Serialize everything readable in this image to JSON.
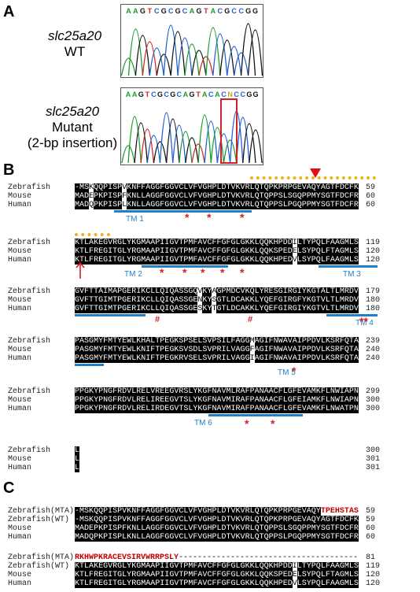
{
  "panels": {
    "a": "A",
    "b": "B",
    "c": "C"
  },
  "panelA": {
    "wt": {
      "gene": "slc25a20",
      "label": "WT",
      "bases": [
        "A",
        "A",
        "G",
        "T",
        "C",
        "G",
        "C",
        "G",
        "C",
        "A",
        "G",
        "T",
        "A",
        "C",
        "G",
        "C",
        "C",
        "G",
        "G"
      ]
    },
    "mutant": {
      "gene": "slc25a20",
      "label": "Mutant",
      "note": "(2-bp insertion)",
      "bases": [
        "A",
        "A",
        "G",
        "T",
        "C",
        "G",
        "C",
        "G",
        "C",
        "A",
        "G",
        "T",
        "A",
        "C",
        "A",
        "C",
        "N",
        "C",
        "C",
        "G",
        "G"
      ]
    }
  },
  "panelB": {
    "blocks": [
      {
        "rows": [
          {
            "species": "Zebrafish",
            "seq": "-MSKQQPISPVKNFFAGGFGGVCLVFVGHPLDTVKVRLQTQPKPRPGEVAQYAGTFDCFK",
            "num": "59"
          },
          {
            "species": "Mouse",
            "seq": "MADEPKPISPFKNLLAGGFGGVCLVFVGHPLDTVKVRLQTQPPSLSGQPPMYSGTFDCFR",
            "num": "60"
          },
          {
            "species": "Human",
            "seq": "MADQPKPISPLKNLLAGGFGGVCLVFVGHPLDTVKVRLQTQPPSLPGQPPMYSGTFDCFR",
            "num": "60"
          }
        ],
        "tm": [
          {
            "label": "TM 1"
          }
        ]
      },
      {
        "rows": [
          {
            "species": "Zebrafish",
            "seq": "KTLAKEGVRGLYKGMAAPIIGVTPMFAVCFFGFGLGKKLQQKHPDDILTYPQLFAAGMLS",
            "num": "119"
          },
          {
            "species": "Mouse",
            "seq": "KTLFREGITGLYRGMAAPIIGVTPMFAVCFFGFGLGKKLQQKSPEDELSYPQLFTAGMLS",
            "num": "120"
          },
          {
            "species": "Human",
            "seq": "KTLFREGITGLYRGMAAPIIGVTPMFAVCFFGFGLGKKLQQKHPEDVLSYPQLFAAGMLS",
            "num": "120"
          }
        ],
        "tm": [
          {
            "label": "TM 2"
          },
          {
            "label": "TM 3"
          }
        ]
      },
      {
        "rows": [
          {
            "species": "Zebrafish",
            "seq": "GVFTTAIMAPGERIKCLLQIQASSGQVKYAGPMDCVKQLYRESGIRGIYKGTALTLMRDV",
            "num": "179"
          },
          {
            "species": "Mouse",
            "seq": "GVFTTGIMTPGERIKCLLQIQASSGENKYSGTLDCAKKLYQEFGIRGFYKGTVLTLMRDV",
            "num": "180"
          },
          {
            "species": "Human",
            "seq": "GVFTTGIMTPGERIKCLLQIQASSGESKYTGTLDCAKKLYQEFGIRGIYKGTVLTLMRDV",
            "num": "180"
          }
        ],
        "tm": [
          {
            "label": "TM 4"
          }
        ]
      },
      {
        "rows": [
          {
            "species": "Zebrafish",
            "seq": "PASGMYFMTYEWLKHALTPEGKSPSELSVPSILFAGGMAGIFNWAVAIPPDVLKSRFQTA",
            "num": "239"
          },
          {
            "species": "Mouse",
            "seq": "PASGMYFMTYEWLKNIFTPEGKSVSDLSVPRILVAGGFAGIFNWAVAIPPDVLKSRFQTA",
            "num": "240"
          },
          {
            "species": "Human",
            "seq": "PASGMYFMTYEWLKNIFTPEGKRVSELSVPRILVAGGIAGIFNWAVAIPPDVLKSRFQTA",
            "num": "240"
          }
        ],
        "tm": [
          {
            "label": "TM 5"
          }
        ]
      },
      {
        "rows": [
          {
            "species": "Zebrafish",
            "seq": "PPGKYPNGFRDVLRELVREEGVRSLYKGFNAVMLRAFPANAACFLGFEVAMKFLNWIAPN",
            "num": "299"
          },
          {
            "species": "Mouse",
            "seq": "PPGKYPNGFRDVLRELIREEGVTSLYKGFNAVMIRAFPANAACFLGFEIAMKFLNWIAPN",
            "num": "300"
          },
          {
            "species": "Human",
            "seq": "PPGKYPNGFRDVLRELIRDEGVTSLYKGFNAVMIRAFPANAACFLGFEVAMKFLNWATPN",
            "num": "300"
          }
        ],
        "tm": [
          {
            "label": "TM 6"
          }
        ]
      },
      {
        "rows": [
          {
            "species": "Zebrafish",
            "seq": "L",
            "num": "300"
          },
          {
            "species": "Mouse",
            "seq": "L",
            "num": "301"
          },
          {
            "species": "Human",
            "seq": "L",
            "num": "301"
          }
        ],
        "tm": []
      }
    ]
  },
  "panelC": {
    "blocks": [
      {
        "rows": [
          {
            "species": "Zebrafish(MTA)",
            "seq": "-MSKQQPISPVKNFFAGGFGGVCLVFVGHPLDTVKVRLQTQPKPRPGEVAQY",
            "red": "TPEHSTAS",
            "num": "59"
          },
          {
            "species": "Zebrafish(WT)",
            "seq": "-MSKQQPISPVKNFFAGGFGGVCLVFVGHPLDTVKVRLQTQPKPRPGEVAQYAGTFDCFK",
            "red": "",
            "num": "59"
          },
          {
            "species": "Mouse",
            "seq": "MADEPKPISPFKNLLAGGFGGVCLVFVGHPLDTVKVRLQTQPPSLSGQPPMYSGTFDCFR",
            "red": "",
            "num": "60"
          },
          {
            "species": "Human",
            "seq": "MADQPKPISPLKNLLAGGFGGVCLVFVGHPLDTVKVRLQTQPPSLPGQPPMYSGTFDCFR",
            "red": "",
            "num": "60"
          }
        ]
      },
      {
        "rows": [
          {
            "species": "Zebrafish(MTA)",
            "seq": "",
            "red": "RKHWPKRACEVSIRVWRRPSLY",
            "tail": "--------------------------------------",
            "num": "81"
          },
          {
            "species": "Zebrafish(WT)",
            "seq": "KTLAKEGVRGLYKGMAAPIIGVTPMFAVCFFGFGLGKKLQQKHPDDILTYPQLFAAGMLS",
            "red": "",
            "num": "119"
          },
          {
            "species": "Mouse",
            "seq": "KTLFREGITGLYRGMAAPIIGVTPMFAVCFFGFGLGKKLQQKSPEDELSYPQLFTAGMLS",
            "red": "",
            "num": "120"
          },
          {
            "species": "Human",
            "seq": "KTLFREGITGLYRGMAAPIIGVTPMFAVCFFGFGLGKKLQQKHPEDVLSYPQLFAAGMLS",
            "red": "",
            "num": "120"
          }
        ]
      }
    ]
  },
  "markers": {
    "star": "*",
    "double_star": "**",
    "hash": "#"
  },
  "colors": {
    "tm": "#1f7fc8",
    "mark": "#d0202a",
    "dots": "#f2b01e",
    "A": "#1a9c2a",
    "C": "#1f5fd0",
    "G": "#111111",
    "T": "#d82020",
    "N": "#d0a020"
  }
}
